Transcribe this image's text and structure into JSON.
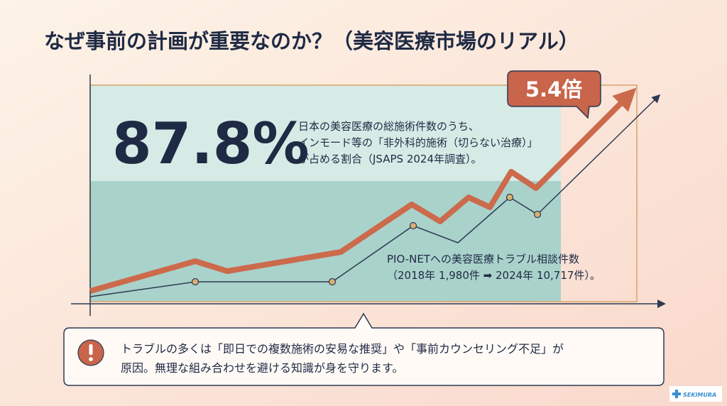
{
  "title": "なぜ事前の計画が重要なのか？（美容医療市場のリアル）",
  "stat": {
    "value": "87.8%",
    "description": [
      "日本の美容医療の総施術件数のうち、",
      "インモード等の「非外科的施術（切らない治療）」",
      "が占める割合（JSAPS 2024年調査）。"
    ]
  },
  "callout": "5.4倍",
  "pionet": [
    "PIO-NETへの美容医療トラブル相談件数",
    "（2018年 1,980件 ➡ 2024年 10,717件）。"
  ],
  "notice": [
    "トラブルの多くは「即日での複数施術の安易な推奨」や「事前カウンセリング不足」が",
    "原因。無理な組み合わせを避ける知識が身を守ります。"
  ],
  "logo": "SEKIMURA"
}
